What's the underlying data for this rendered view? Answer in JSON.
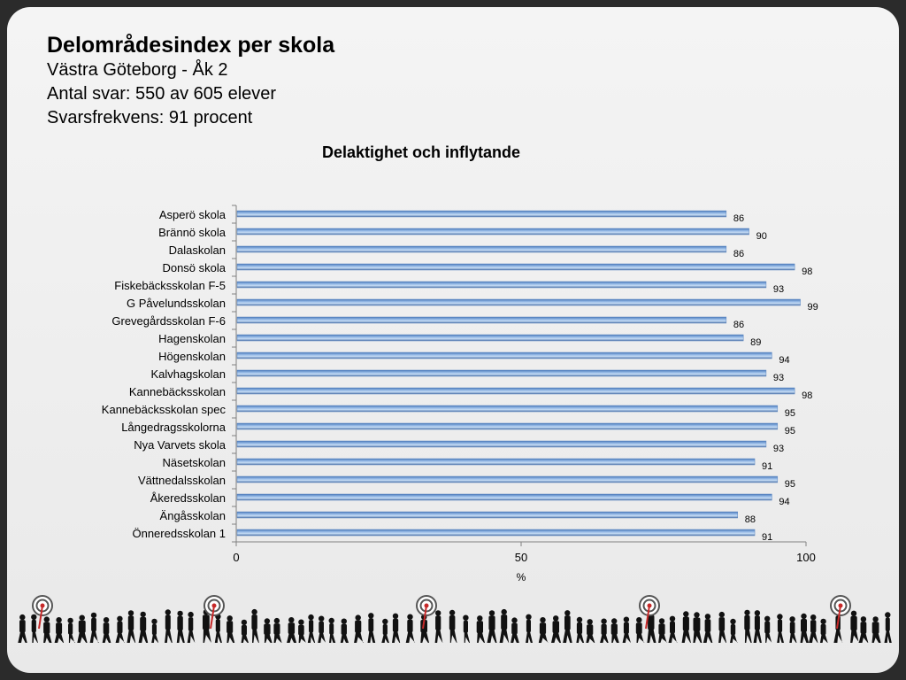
{
  "header": {
    "title": "Delområdesindex per skola",
    "subtitle1": "Västra Göteborg - Åk 2",
    "subtitle2": "Antal svar: 550 av 605 elever",
    "subtitle3": "Svarsfrekvens: 91 procent"
  },
  "chart_data": {
    "type": "bar",
    "orientation": "horizontal",
    "title": "Delaktighet och inflytande",
    "xlabel": "%",
    "ylabel": "",
    "xlim": [
      0,
      100
    ],
    "xticks": [
      0,
      50,
      100
    ],
    "grid": false,
    "bar_color": "#8fb4e3",
    "categories": [
      "Asperö skola",
      "Brännö skola",
      "Dalaskolan",
      "Donsö skola",
      "Fiskebäcksskolan F-5",
      "G Påvelundsskolan",
      "Grevegårdsskolan F-6",
      "Hagenskolan",
      "Högenskolan",
      "Kalvhagskolan",
      "Kannebäcksskolan",
      "Kannebäcksskolan spec",
      "Långedragsskolorna",
      "Nya Varvets skola",
      "Näsetskolan",
      "Vättnedalsskolan",
      "Åkeredsskolan",
      "Ängåsskolan",
      "Önneredsskolan 1"
    ],
    "values": [
      86,
      90,
      86,
      98,
      93,
      99,
      86,
      89,
      94,
      93,
      98,
      95,
      95,
      93,
      91,
      95,
      94,
      88,
      91
    ]
  },
  "decoration": {
    "target_color": "#c62828",
    "people_color": "#111111"
  }
}
